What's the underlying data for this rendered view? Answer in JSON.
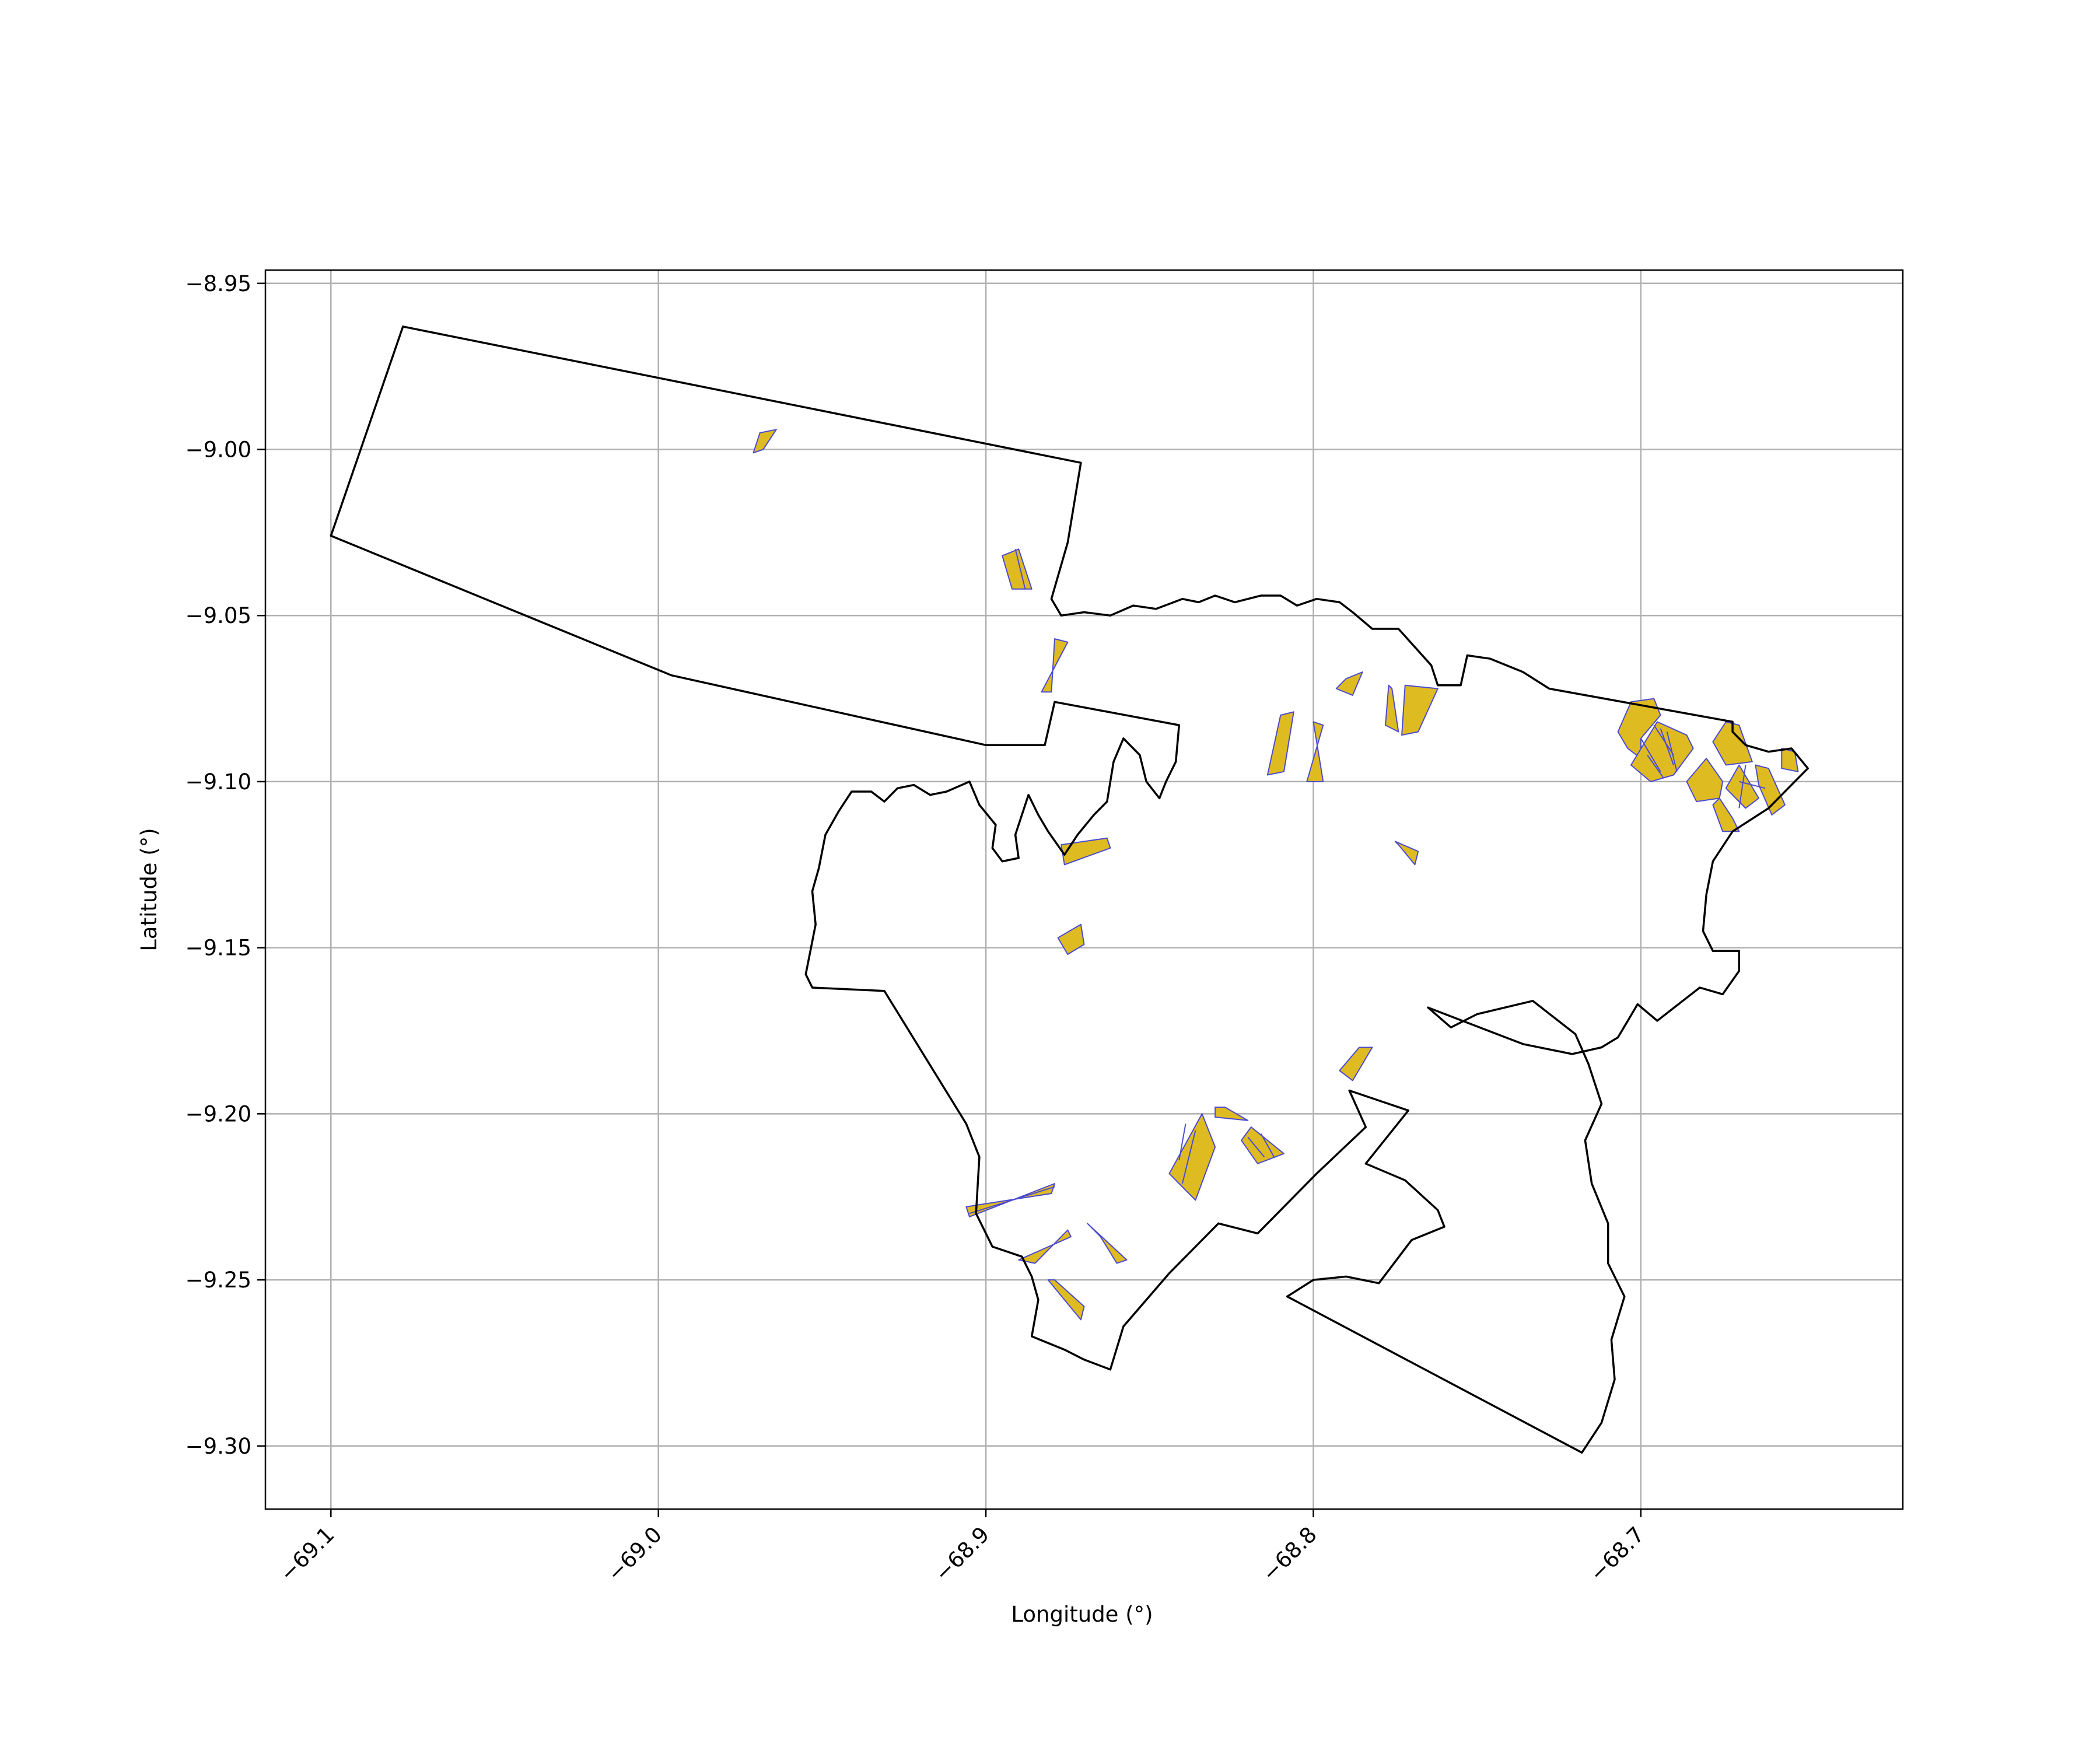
{
  "chart_data": {
    "type": "map",
    "title": "",
    "xlabel": "Longitude (°)",
    "ylabel": "Latitude (°)",
    "xlim": [
      -69.12,
      -68.62
    ],
    "ylim": [
      -9.319,
      -8.946
    ],
    "xticks": [
      -69.1,
      -69.0,
      -68.9,
      -68.8,
      -68.7
    ],
    "xtick_labels": [
      "−69.1",
      "−69.0",
      "−68.9",
      "−68.8",
      "−68.7"
    ],
    "yticks": [
      -8.95,
      -9.0,
      -9.05,
      -9.1,
      -9.15,
      -9.2,
      -9.25,
      -9.3
    ],
    "ytick_labels": [
      "−8.95",
      "−9.00",
      "−9.05",
      "−9.10",
      "−9.15",
      "−9.20",
      "−9.25",
      "−9.30"
    ],
    "grid": true,
    "colors": {
      "boundary": "#000000",
      "parcel_fill": "#dfbb22",
      "parcel_edge": "#4b4bd1",
      "grid": "#b0b0b0"
    },
    "boundaries": [
      [
        [
          -69.078,
          -8.963
        ],
        [
          -69.1,
          -9.026
        ],
        [
          -68.996,
          -9.068
        ],
        [
          -68.9,
          -9.089
        ],
        [
          -68.882,
          -9.089
        ],
        [
          -68.879,
          -9.076
        ],
        [
          -68.841,
          -9.083
        ],
        [
          -68.842,
          -9.094
        ],
        [
          -68.845,
          -9.1
        ],
        [
          -68.847,
          -9.105
        ],
        [
          -68.851,
          -9.1
        ],
        [
          -68.853,
          -9.092
        ],
        [
          -68.858,
          -9.087
        ],
        [
          -68.861,
          -9.094
        ],
        [
          -68.863,
          -9.106
        ],
        [
          -68.867,
          -9.11
        ],
        [
          -68.872,
          -9.116
        ],
        [
          -68.876,
          -9.122
        ],
        [
          -68.881,
          -9.115
        ],
        [
          -68.884,
          -9.11
        ],
        [
          -68.887,
          -9.104
        ],
        [
          -68.891,
          -9.116
        ],
        [
          -68.89,
          -9.123
        ],
        [
          -68.895,
          -9.124
        ],
        [
          -68.898,
          -9.12
        ],
        [
          -68.897,
          -9.113
        ],
        [
          -68.902,
          -9.107
        ],
        [
          -68.905,
          -9.1
        ],
        [
          -68.912,
          -9.103
        ],
        [
          -68.917,
          -9.104
        ],
        [
          -68.922,
          -9.101
        ],
        [
          -68.927,
          -9.102
        ],
        [
          -68.931,
          -9.106
        ],
        [
          -68.935,
          -9.103
        ],
        [
          -68.941,
          -9.103
        ],
        [
          -68.945,
          -9.109
        ],
        [
          -68.949,
          -9.116
        ],
        [
          -68.951,
          -9.126
        ],
        [
          -68.953,
          -9.133
        ],
        [
          -68.952,
          -9.143
        ],
        [
          -68.955,
          -9.158
        ],
        [
          -68.953,
          -9.162
        ],
        [
          -68.931,
          -9.163
        ],
        [
          -68.906,
          -9.203
        ],
        [
          -68.902,
          -9.213
        ],
        [
          -68.903,
          -9.23
        ],
        [
          -68.898,
          -9.24
        ],
        [
          -68.889,
          -9.243
        ],
        [
          -68.886,
          -9.249
        ],
        [
          -68.884,
          -9.256
        ],
        [
          -68.886,
          -9.267
        ],
        [
          -68.876,
          -9.271
        ],
        [
          -68.87,
          -9.274
        ],
        [
          -68.862,
          -9.277
        ],
        [
          -68.858,
          -9.264
        ],
        [
          -68.844,
          -9.248
        ],
        [
          -68.829,
          -9.233
        ],
        [
          -68.817,
          -9.236
        ],
        [
          -68.799,
          -9.218
        ],
        [
          -68.784,
          -9.204
        ],
        [
          -68.789,
          -9.193
        ],
        [
          -68.771,
          -9.199
        ],
        [
          -68.784,
          -9.215
        ],
        [
          -68.772,
          -9.22
        ],
        [
          -68.762,
          -9.229
        ],
        [
          -68.76,
          -9.234
        ],
        [
          -68.77,
          -9.238
        ],
        [
          -68.78,
          -9.251
        ],
        [
          -68.79,
          -9.249
        ],
        [
          -68.8,
          -9.25
        ],
        [
          -68.808,
          -9.255
        ],
        [
          -68.718,
          -9.302
        ],
        [
          -68.712,
          -9.293
        ],
        [
          -68.708,
          -9.28
        ],
        [
          -68.709,
          -9.268
        ],
        [
          -68.705,
          -9.255
        ],
        [
          -68.71,
          -9.245
        ],
        [
          -68.71,
          -9.233
        ],
        [
          -68.715,
          -9.221
        ],
        [
          -68.717,
          -9.208
        ],
        [
          -68.712,
          -9.197
        ],
        [
          -68.716,
          -9.185
        ],
        [
          -68.72,
          -9.176
        ],
        [
          -68.733,
          -9.166
        ],
        [
          -68.75,
          -9.17
        ],
        [
          -68.758,
          -9.174
        ],
        [
          -68.765,
          -9.168
        ],
        [
          -68.736,
          -9.179
        ],
        [
          -68.721,
          -9.182
        ],
        [
          -68.712,
          -9.18
        ],
        [
          -68.707,
          -9.177
        ],
        [
          -68.701,
          -9.167
        ],
        [
          -68.695,
          -9.172
        ],
        [
          -68.682,
          -9.162
        ],
        [
          -68.675,
          -9.164
        ],
        [
          -68.67,
          -9.157
        ],
        [
          -68.67,
          -9.151
        ],
        [
          -68.678,
          -9.151
        ],
        [
          -68.681,
          -9.145
        ],
        [
          -68.68,
          -9.134
        ],
        [
          -68.678,
          -9.124
        ],
        [
          -68.672,
          -9.115
        ],
        [
          -68.661,
          -9.108
        ],
        [
          -68.653,
          -9.1
        ],
        [
          -68.649,
          -9.096
        ],
        [
          -68.654,
          -9.09
        ],
        [
          -68.661,
          -9.091
        ],
        [
          -68.668,
          -9.089
        ],
        [
          -68.672,
          -9.085
        ],
        [
          -68.672,
          -9.082
        ],
        [
          -68.728,
          -9.072
        ],
        [
          -68.736,
          -9.067
        ],
        [
          -68.746,
          -9.063
        ],
        [
          -68.753,
          -9.062
        ],
        [
          -68.755,
          -9.071
        ],
        [
          -68.762,
          -9.071
        ],
        [
          -68.764,
          -9.065
        ],
        [
          -68.774,
          -9.054
        ],
        [
          -68.782,
          -9.054
        ],
        [
          -68.788,
          -9.049
        ],
        [
          -68.792,
          -9.046
        ],
        [
          -68.799,
          -9.045
        ],
        [
          -68.805,
          -9.047
        ],
        [
          -68.81,
          -9.044
        ],
        [
          -68.816,
          -9.044
        ],
        [
          -68.824,
          -9.046
        ],
        [
          -68.83,
          -9.044
        ],
        [
          -68.835,
          -9.046
        ],
        [
          -68.84,
          -9.045
        ],
        [
          -68.848,
          -9.048
        ],
        [
          -68.855,
          -9.047
        ],
        [
          -68.862,
          -9.05
        ],
        [
          -68.87,
          -9.049
        ],
        [
          -68.877,
          -9.05
        ],
        [
          -68.88,
          -9.045
        ],
        [
          -68.875,
          -9.028
        ],
        [
          -68.871,
          -9.004
        ],
        [
          -69.078,
          -8.963
        ]
      ]
    ],
    "parcels": [
      [
        [
          -68.968,
          -9.0
        ],
        [
          -68.964,
          -8.994
        ],
        [
          -68.969,
          -8.995
        ],
        [
          -68.971,
          -9.001
        ]
      ],
      [
        [
          -68.895,
          -9.032
        ],
        [
          -68.89,
          -9.03
        ],
        [
          -68.886,
          -9.042
        ],
        [
          -68.892,
          -9.042
        ]
      ],
      [
        [
          -68.879,
          -9.057
        ],
        [
          -68.875,
          -9.058
        ],
        [
          -68.883,
          -9.073
        ],
        [
          -68.88,
          -9.073
        ]
      ],
      [
        [
          -68.877,
          -9.119
        ],
        [
          -68.876,
          -9.125
        ],
        [
          -68.862,
          -9.12
        ],
        [
          -68.863,
          -9.117
        ]
      ],
      [
        [
          -68.878,
          -9.147
        ],
        [
          -68.875,
          -9.152
        ],
        [
          -68.87,
          -9.149
        ],
        [
          -68.871,
          -9.143
        ]
      ],
      [
        [
          -68.81,
          -9.08
        ],
        [
          -68.806,
          -9.079
        ],
        [
          -68.809,
          -9.097
        ],
        [
          -68.814,
          -9.098
        ]
      ],
      [
        [
          -68.8,
          -9.082
        ],
        [
          -68.797,
          -9.083
        ],
        [
          -68.802,
          -9.1
        ],
        [
          -68.797,
          -9.1
        ]
      ],
      [
        [
          -68.79,
          -9.069
        ],
        [
          -68.785,
          -9.067
        ],
        [
          -68.788,
          -9.074
        ],
        [
          -68.793,
          -9.072
        ]
      ],
      [
        [
          -68.776,
          -9.072
        ],
        [
          -68.774,
          -9.085
        ],
        [
          -68.778,
          -9.083
        ],
        [
          -68.777,
          -9.071
        ]
      ],
      [
        [
          -68.772,
          -9.071
        ],
        [
          -68.762,
          -9.072
        ],
        [
          -68.768,
          -9.085
        ],
        [
          -68.773,
          -9.086
        ]
      ],
      [
        [
          -68.774,
          -9.119
        ],
        [
          -68.769,
          -9.125
        ],
        [
          -68.768,
          -9.121
        ],
        [
          -68.775,
          -9.118
        ]
      ],
      [
        [
          -68.786,
          -9.18
        ],
        [
          -68.782,
          -9.18
        ],
        [
          -68.788,
          -9.19
        ],
        [
          -68.792,
          -9.187
        ]
      ],
      [
        [
          -68.827,
          -9.198
        ],
        [
          -68.82,
          -9.202
        ],
        [
          -68.83,
          -9.201
        ],
        [
          -68.83,
          -9.198
        ]
      ],
      [
        [
          -68.834,
          -9.2
        ],
        [
          -68.844,
          -9.218
        ],
        [
          -68.836,
          -9.226
        ],
        [
          -68.83,
          -9.21
        ]
      ],
      [
        [
          -68.819,
          -9.204
        ],
        [
          -68.809,
          -9.212
        ],
        [
          -68.817,
          -9.215
        ],
        [
          -68.822,
          -9.208
        ]
      ],
      [
        [
          -68.879,
          -9.221
        ],
        [
          -68.905,
          -9.231
        ],
        [
          -68.906,
          -9.228
        ],
        [
          -68.88,
          -9.224
        ]
      ],
      [
        [
          -68.875,
          -9.235
        ],
        [
          -68.885,
          -9.245
        ],
        [
          -68.89,
          -9.244
        ],
        [
          -68.874,
          -9.237
        ]
      ],
      [
        [
          -68.865,
          -9.237
        ],
        [
          -68.86,
          -9.245
        ],
        [
          -68.857,
          -9.244
        ],
        [
          -68.869,
          -9.233
        ]
      ],
      [
        [
          -68.879,
          -9.25
        ],
        [
          -68.87,
          -9.258
        ],
        [
          -68.871,
          -9.262
        ],
        [
          -68.881,
          -9.25
        ]
      ],
      [
        [
          -68.703,
          -9.076
        ],
        [
          -68.696,
          -9.075
        ],
        [
          -68.694,
          -9.08
        ],
        [
          -68.7,
          -9.087
        ],
        [
          -68.7,
          -9.093
        ],
        [
          -68.704,
          -9.09
        ],
        [
          -68.707,
          -9.085
        ]
      ],
      [
        [
          -68.695,
          -9.082
        ],
        [
          -68.686,
          -9.086
        ],
        [
          -68.684,
          -9.09
        ],
        [
          -68.69,
          -9.098
        ],
        [
          -68.697,
          -9.1
        ],
        [
          -68.703,
          -9.095
        ]
      ],
      [
        [
          -68.674,
          -9.082
        ],
        [
          -68.67,
          -9.083
        ],
        [
          -68.666,
          -9.094
        ],
        [
          -68.674,
          -9.095
        ],
        [
          -68.678,
          -9.088
        ]
      ],
      [
        [
          -68.68,
          -9.093
        ],
        [
          -68.675,
          -9.1
        ],
        [
          -68.676,
          -9.105
        ],
        [
          -68.683,
          -9.106
        ],
        [
          -68.686,
          -9.1
        ]
      ],
      [
        [
          -68.67,
          -9.095
        ],
        [
          -68.664,
          -9.105
        ],
        [
          -68.668,
          -9.108
        ],
        [
          -68.674,
          -9.102
        ]
      ],
      [
        [
          -68.665,
          -9.095
        ],
        [
          -68.661,
          -9.096
        ],
        [
          -68.656,
          -9.107
        ],
        [
          -68.66,
          -9.11
        ],
        [
          -68.664,
          -9.101
        ]
      ],
      [
        [
          -68.676,
          -9.105
        ],
        [
          -68.672,
          -9.111
        ],
        [
          -68.67,
          -9.115
        ],
        [
          -68.675,
          -9.115
        ],
        [
          -68.678,
          -9.107
        ]
      ],
      [
        [
          -68.657,
          -9.09
        ],
        [
          -68.653,
          -9.091
        ],
        [
          -68.652,
          -9.097
        ],
        [
          -68.657,
          -9.096
        ]
      ]
    ],
    "parcel_dividers": [
      [
        [
          -68.891,
          -9.03
        ],
        [
          -68.888,
          -9.042
        ]
      ],
      [
        [
          -68.839,
          -9.203
        ],
        [
          -68.841,
          -9.214
        ]
      ],
      [
        [
          -68.836,
          -9.205
        ],
        [
          -68.84,
          -9.221
        ]
      ],
      [
        [
          -68.816,
          -9.206
        ],
        [
          -68.812,
          -9.213
        ]
      ],
      [
        [
          -68.82,
          -9.207
        ],
        [
          -68.815,
          -9.213
        ]
      ],
      [
        [
          -68.879,
          -9.222
        ],
        [
          -68.905,
          -9.23
        ]
      ],
      [
        [
          -68.696,
          -9.083
        ],
        [
          -68.69,
          -9.092
        ]
      ],
      [
        [
          -68.694,
          -9.084
        ],
        [
          -68.69,
          -9.095
        ]
      ],
      [
        [
          -68.692,
          -9.085
        ],
        [
          -68.689,
          -9.097
        ]
      ],
      [
        [
          -68.7,
          -9.087
        ],
        [
          -68.694,
          -9.097
        ]
      ],
      [
        [
          -68.698,
          -9.092
        ],
        [
          -68.693,
          -9.099
        ]
      ],
      [
        [
          -68.67,
          -9.1
        ],
        [
          -68.662,
          -9.102
        ]
      ],
      [
        [
          -68.668,
          -9.095
        ],
        [
          -68.67,
          -9.108
        ]
      ]
    ]
  }
}
